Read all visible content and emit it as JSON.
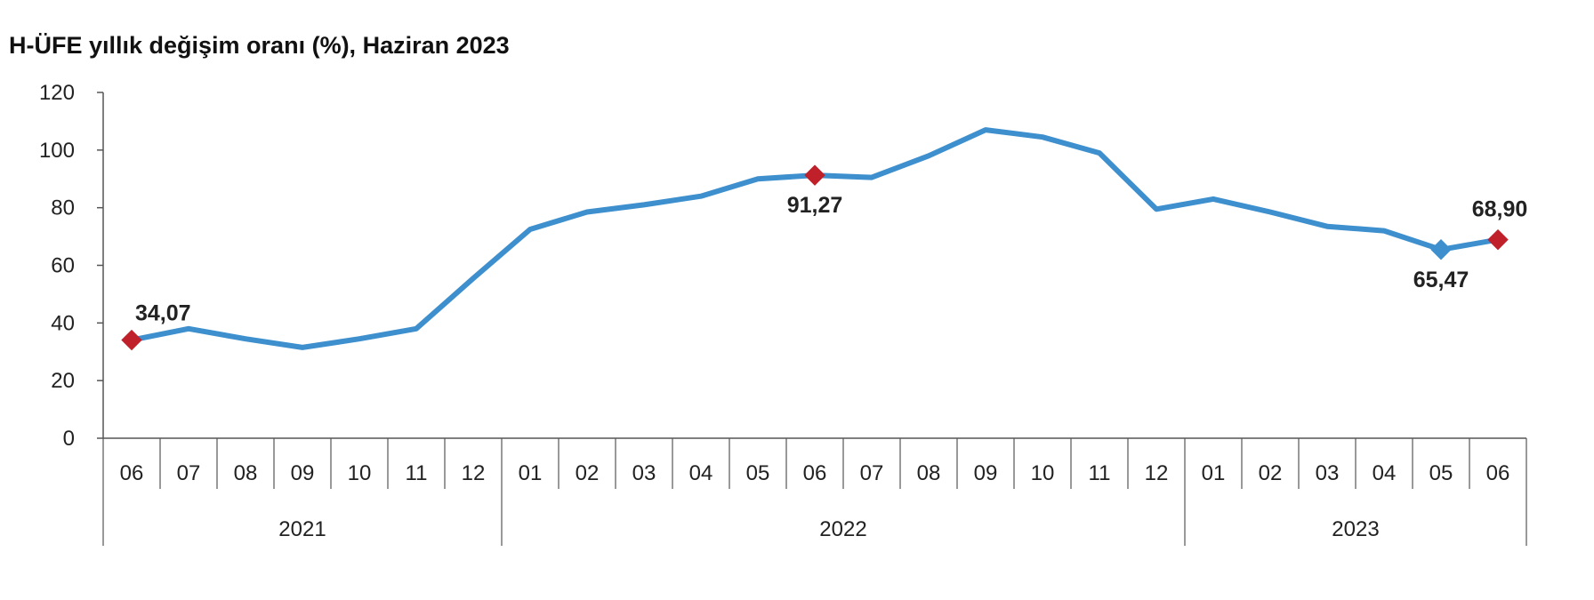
{
  "chart_data": {
    "type": "line",
    "title": "H-ÜFE yıllık değişim oranı (%), Haziran 2023",
    "xlabel": "",
    "ylabel": "",
    "ylim": [
      0,
      120
    ],
    "yticks": [
      0,
      20,
      40,
      60,
      80,
      100,
      120
    ],
    "grid": false,
    "legend": "none",
    "categories": [
      "06",
      "07",
      "08",
      "09",
      "10",
      "11",
      "12",
      "01",
      "02",
      "03",
      "04",
      "05",
      "06",
      "07",
      "08",
      "09",
      "10",
      "11",
      "12",
      "01",
      "02",
      "03",
      "04",
      "05",
      "06"
    ],
    "year_groups": [
      {
        "label": "2021",
        "count": 7
      },
      {
        "label": "2022",
        "count": 12
      },
      {
        "label": "2023",
        "count": 6
      }
    ],
    "series": [
      {
        "values": [
          34.07,
          38.0,
          34.5,
          31.5,
          34.5,
          38.0,
          55.5,
          72.5,
          78.5,
          81.0,
          84.0,
          90.0,
          91.27,
          90.5,
          98.0,
          107.0,
          104.5,
          99.0,
          79.5,
          83.0,
          78.5,
          73.5,
          72.0,
          65.47,
          68.9
        ]
      }
    ],
    "annotations": [
      {
        "index": 0,
        "text": "34,07",
        "position": "above"
      },
      {
        "index": 12,
        "text": "91,27",
        "position": "below"
      },
      {
        "index": 23,
        "text": "65,47",
        "position": "below"
      },
      {
        "index": 24,
        "text": "68,90",
        "position": "above"
      }
    ],
    "colors": {
      "line": "#3d8fce",
      "highlight_marker": "#c0202a",
      "alt_marker": "#3d8fce",
      "axis": "#555555"
    }
  }
}
